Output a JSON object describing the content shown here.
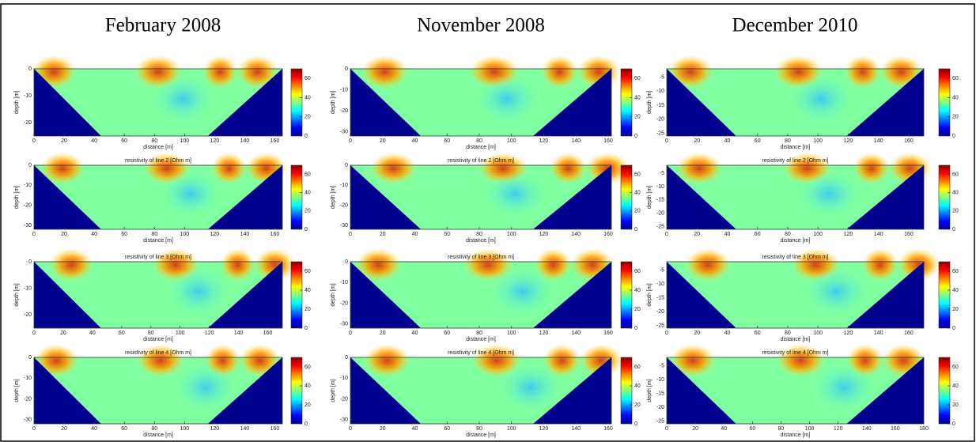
{
  "figure": {
    "columns": [
      {
        "title": "February 2008",
        "panels": [
          {
            "xlabel": "distance [m]",
            "ylabel": "depth [m]",
            "xlim": [
              0,
              165
            ],
            "ylim": [
              -25,
              0
            ],
            "xticks": [
              0,
              20,
              40,
              60,
              80,
              100,
              120,
              140,
              160
            ],
            "yticks": [
              0,
              -10,
              -20
            ],
            "clim": [
              0,
              70
            ],
            "cticks": [
              0,
              20,
              40,
              60
            ]
          },
          {
            "title": "resistivity of line 2 [Ohm m]",
            "xlabel": "distance [m]",
            "ylabel": "depth [m]",
            "xlim": [
              0,
              165
            ],
            "ylim": [
              -32,
              0
            ],
            "xticks": [
              0,
              20,
              40,
              60,
              80,
              100,
              120,
              140,
              160
            ],
            "yticks": [
              0,
              -10,
              -20,
              -30
            ],
            "clim": [
              0,
              70
            ],
            "cticks": [
              0,
              20,
              40,
              60
            ]
          },
          {
            "title": "resistivity of line 3 [Ohm m]",
            "xlabel": "distance [m]",
            "ylabel": "depth [m]",
            "xlim": [
              0,
              170
            ],
            "ylim": [
              -25,
              0
            ],
            "xticks": [
              0,
              20,
              40,
              60,
              80,
              100,
              120,
              140,
              160
            ],
            "yticks": [
              0,
              -10,
              -20
            ],
            "clim": [
              0,
              70
            ],
            "cticks": [
              0,
              20,
              40,
              60
            ]
          },
          {
            "title": "resistivity of line 4 [Ohm m]",
            "xlabel": "distance [m]",
            "ylabel": "depth [m]",
            "xlim": [
              0,
              165
            ],
            "ylim": [
              -32,
              0
            ],
            "xticks": [
              0,
              20,
              40,
              60,
              80,
              100,
              120,
              140,
              160
            ],
            "yticks": [
              0,
              -10,
              -20,
              -30
            ],
            "clim": [
              0,
              70
            ],
            "cticks": [
              0,
              20,
              40,
              60
            ]
          }
        ]
      },
      {
        "title": "November 2008",
        "panels": [
          {
            "xlabel": "distance [m]",
            "ylabel": "depth [m]",
            "xlim": [
              0,
              162
            ],
            "ylim": [
              -32,
              0
            ],
            "xticks": [
              0,
              20,
              40,
              60,
              80,
              100,
              120,
              140,
              160
            ],
            "yticks": [
              0,
              -10,
              -20,
              -30
            ],
            "clim": [
              0,
              70
            ],
            "cticks": [
              0,
              20,
              40,
              60
            ]
          },
          {
            "title": "resistivity of line 2 [Ohm m]",
            "xlabel": "distance [m]",
            "ylabel": "depth [m]",
            "xlim": [
              0,
              162
            ],
            "ylim": [
              -32,
              0
            ],
            "xticks": [
              0,
              20,
              40,
              60,
              80,
              100,
              120,
              140,
              160
            ],
            "yticks": [
              0,
              -10,
              -20,
              -30
            ],
            "clim": [
              0,
              70
            ],
            "cticks": [
              0,
              20,
              40,
              60
            ]
          },
          {
            "title": "resistivity of line 3 [Ohm m]",
            "xlabel": "distance [m]",
            "ylabel": "depth [m]",
            "xlim": [
              0,
              162
            ],
            "ylim": [
              -32,
              0
            ],
            "xticks": [
              0,
              20,
              40,
              60,
              80,
              100,
              120,
              140,
              160
            ],
            "yticks": [
              0,
              -10,
              -20,
              -30
            ],
            "clim": [
              0,
              70
            ],
            "cticks": [
              0,
              20,
              40,
              60
            ]
          },
          {
            "title": "resistivity of line 4 [Ohm m]",
            "xlabel": "distance [m]",
            "ylabel": "depth [m]",
            "xlim": [
              0,
              162
            ],
            "ylim": [
              -32,
              0
            ],
            "xticks": [
              0,
              20,
              40,
              60,
              80,
              100,
              120,
              140,
              160
            ],
            "yticks": [
              0,
              -10,
              -20,
              -30
            ],
            "clim": [
              0,
              70
            ],
            "cticks": [
              0,
              20,
              40,
              60
            ]
          }
        ]
      },
      {
        "title": "December 2010",
        "panels": [
          {
            "xlabel": "distance [m]",
            "ylabel": "depth [m]",
            "xlim": [
              0,
              170
            ],
            "ylim": [
              -26,
              -2
            ],
            "xticks": [
              0,
              20,
              40,
              60,
              80,
              100,
              120,
              140,
              160
            ],
            "yticks": [
              -5,
              -10,
              -15,
              -20,
              -25
            ],
            "clim": [
              0,
              70
            ],
            "cticks": [
              0,
              20,
              40,
              60
            ]
          },
          {
            "title": "resistivity of line 2 [Ohm m]",
            "xlabel": "distance [m]",
            "ylabel": "depth [m]",
            "xlim": [
              0,
              170
            ],
            "ylim": [
              -26,
              -2
            ],
            "xticks": [
              0,
              20,
              40,
              60,
              80,
              100,
              120,
              140,
              160
            ],
            "yticks": [
              -5,
              -10,
              -15,
              -20,
              -25
            ],
            "clim": [
              0,
              70
            ],
            "cticks": [
              0,
              20,
              40,
              60
            ]
          },
          {
            "title": "resistivity of line 3 [Ohm m]",
            "xlabel": "distance [m]",
            "ylabel": "depth [m]",
            "xlim": [
              0,
              170
            ],
            "ylim": [
              -26,
              -2
            ],
            "xticks": [
              0,
              20,
              40,
              60,
              80,
              100,
              120,
              140,
              160
            ],
            "yticks": [
              -5,
              -10,
              -15,
              -20,
              -25
            ],
            "clim": [
              0,
              70
            ],
            "cticks": [
              0,
              20,
              40,
              60
            ]
          },
          {
            "title": "resistivity of line 4 [Ohm m]",
            "xlabel": "distance [m]",
            "ylabel": "depth [m]",
            "xlim": [
              0,
              180
            ],
            "ylim": [
              -26,
              -2
            ],
            "xticks": [
              0,
              20,
              40,
              60,
              80,
              100,
              120,
              140,
              160,
              180
            ],
            "yticks": [
              -5,
              -10,
              -15,
              -20,
              -25
            ],
            "clim": [
              0,
              70
            ],
            "cticks": [
              0,
              20,
              40,
              60
            ]
          }
        ]
      }
    ]
  }
}
